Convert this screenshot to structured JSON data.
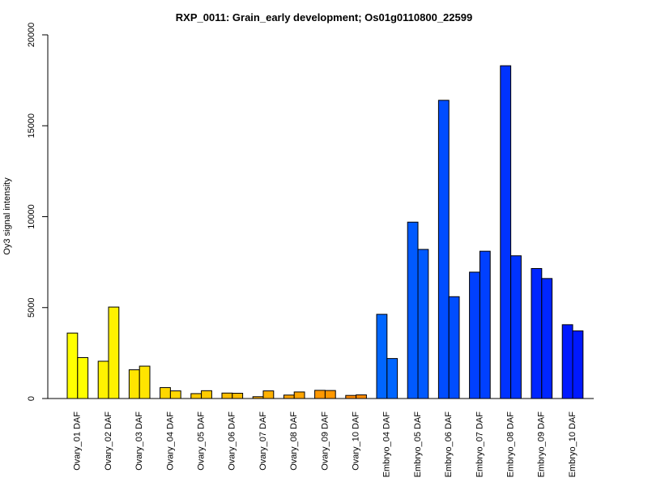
{
  "chart_data": {
    "type": "bar",
    "title": "RXP_0011: Grain_early development; Os01g0110800_22599",
    "ylabel": "Oy3 signal intensity",
    "xlabel": "",
    "ylim": [
      0,
      20000
    ],
    "yticks": [
      "0",
      "5000",
      "10000",
      "15000",
      "20000"
    ],
    "ytick_values": [
      0,
      5000,
      10000,
      15000,
      20000
    ],
    "grid": false,
    "categories": [
      "Ovary_01 DAF",
      "Ovary_02 DAF",
      "Ovary_03 DAF",
      "Ovary_04 DAF",
      "Ovary_05 DAF",
      "Ovary_06 DAF",
      "Ovary_07 DAF",
      "Ovary_08 DAF",
      "Ovary_09 DAF",
      "Ovary_10 DAF",
      "Embryo_04 DAF",
      "Embryo_05 DAF",
      "Embryo_06 DAF",
      "Embryo_07 DAF",
      "Embryo_08 DAF",
      "Embryo_09 DAF",
      "Embryo_10 DAF"
    ],
    "series": [
      {
        "values": [
          3600,
          2050,
          1580,
          600,
          270,
          300,
          100,
          190,
          450,
          170,
          4630,
          9700,
          16400,
          6950,
          18300,
          7150,
          4060
        ]
      },
      {
        "values": [
          2250,
          5030,
          1780,
          420,
          430,
          290,
          420,
          360,
          440,
          200,
          2200,
          8200,
          5600,
          8100,
          7850,
          6600,
          3720
        ]
      }
    ],
    "colors": [
      "#ffff00",
      "#fff200",
      "#ffe500",
      "#ffd800",
      "#ffcb00",
      "#ffbe00",
      "#ffb100",
      "#ffa500",
      "#ff9800",
      "#ff8b00",
      "#0066ff",
      "#005aff",
      "#004dff",
      "#0040ff",
      "#0033ff",
      "#0026ff",
      "#0019ff"
    ]
  }
}
